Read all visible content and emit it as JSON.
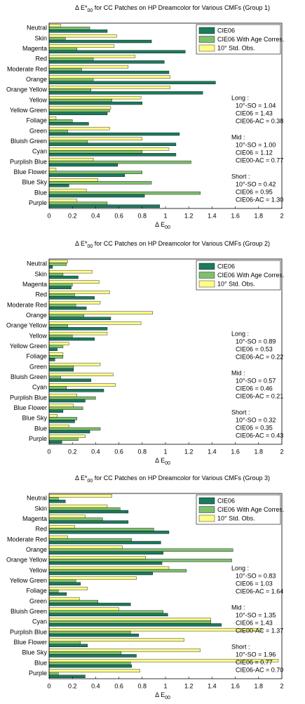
{
  "chart_data": [
    {
      "type": "barh",
      "title": "Δ E*",
      "title_sub": "00",
      "title_rest": " for CC Patches on HP Dreamcolor for Various CMFs (Group 1)",
      "xlabel": "Δ E",
      "xlabel_sub": "00",
      "categories": [
        "Neutral",
        "Skin",
        "Magenta",
        "Red",
        "Moderate Red",
        "Orange",
        "Orange Yellow",
        "Yellow",
        "Yellow Green",
        "Foliage",
        "Green",
        "Bluish Green",
        "Cyan",
        "Purplish Blue",
        "Blue Flower",
        "Blue Sky",
        "Blue",
        "Purple"
      ],
      "series": [
        {
          "name": "CIE06",
          "color": "#1b7a5f",
          "values": [
            0.5,
            0.88,
            1.17,
            0.99,
            1.03,
            1.43,
            1.32,
            0.8,
            0.5,
            0.34,
            1.12,
            1.09,
            1.09,
            0.59,
            0.65,
            0.17,
            0.82,
            0.95
          ]
        },
        {
          "name": "CIE06 With Age Corres.",
          "color": "#7fbf6e",
          "values": [
            0.35,
            0.14,
            0.24,
            0.38,
            0.28,
            0.38,
            0.36,
            0.54,
            0.52,
            0.2,
            0.16,
            0.33,
            0.8,
            1.22,
            0.8,
            0.88,
            1.3,
            0.5
          ]
        },
        {
          "name": "10° Std. Obs.",
          "color": "#ffff88",
          "values": [
            0.1,
            0.58,
            0.56,
            0.74,
            0.68,
            1.04,
            1.04,
            0.79,
            0.53,
            0.06,
            0.52,
            0.8,
            1.03,
            0.38,
            0.06,
            0.42,
            0.32,
            0.24
          ]
        }
      ],
      "xlim": [
        0,
        2
      ],
      "xticks": [
        0,
        0.2,
        0.4,
        0.6,
        0.8,
        1,
        1.2,
        1.4,
        1.6,
        1.8,
        2
      ],
      "legend": "upper right",
      "annotations": [
        [
          "Long :",
          "10°-SO = 1.04",
          "CIE06 = 1.43",
          "CIE06-AC = 0.38"
        ],
        [
          "Mid :",
          "10°-SO = 1.00",
          "CIE06 = 1.12",
          "CIE00-AC = 0.77"
        ],
        [
          "Short :",
          "10°-SO = 0.42",
          "CIE06 = 0.95",
          "CIE06-AC = 1.30"
        ]
      ]
    },
    {
      "type": "barh",
      "title": "Δ E*",
      "title_sub": "00",
      "title_rest": " for CC Patches on HP Dreamcolor for Various CMFs (Group 2)",
      "xlabel": "Δ E",
      "xlabel_sub": "00",
      "categories": [
        "Neutral",
        "Skin",
        "Magenta",
        "Red",
        "Moderate Red",
        "Orange",
        "Orange Yellow",
        "Yellow",
        "Yellow Green",
        "Foliage",
        "Green",
        "Bluish Green",
        "Cyan",
        "Purplish Blue",
        "Blue Flower",
        "Blue Sky",
        "Blue",
        "Purple"
      ],
      "series": [
        {
          "name": "CIE06",
          "color": "#1b7a5f",
          "values": [
            0.03,
            0.25,
            0.19,
            0.39,
            0.32,
            0.53,
            0.5,
            0.39,
            0.07,
            0.05,
            0.21,
            0.36,
            0.47,
            0.31,
            0.12,
            0.22,
            0.35,
            0.11
          ]
        },
        {
          "name": "CIE06 With Age Corres.",
          "color": "#7fbf6e",
          "values": [
            0.15,
            0.12,
            0.2,
            0.22,
            0.23,
            0.3,
            0.16,
            0.2,
            0.12,
            0.12,
            0.21,
            0.1,
            0.15,
            0.4,
            0.29,
            0.24,
            0.44,
            0.25
          ]
        },
        {
          "name": "10° Std. Obs.",
          "color": "#ffff88",
          "values": [
            0.16,
            0.37,
            0.43,
            0.52,
            0.44,
            0.89,
            0.79,
            0.5,
            0.17,
            0.12,
            0.44,
            0.55,
            0.57,
            0.24,
            0.21,
            0.07,
            0.17,
            0.31
          ]
        }
      ],
      "xlim": [
        0,
        2
      ],
      "xticks": [
        0,
        0.2,
        0.4,
        0.6,
        0.8,
        1,
        1.2,
        1.4,
        1.6,
        1.8,
        2
      ],
      "legend": "upper right",
      "annotations": [
        [
          "Long :",
          "10°-SO = 0.89",
          "CIE06 = 0.53",
          "CIE06-AC = 0.22"
        ],
        [
          "Mid :",
          "10°-SO = 0.57",
          "CIE06 = 0.46",
          "CIE06-AC = 0.21"
        ],
        [
          "Short :",
          "10°-SO = 0.32",
          "CIE06 = 0.35",
          "CIE06-AC = 0.43"
        ]
      ]
    },
    {
      "type": "barh",
      "title": "Δ E*",
      "title_sub": "00",
      "title_rest": " for CC Patches on HP Dreamcolor for Various CMFs (Group 3)",
      "xlabel": "Δ E",
      "xlabel_sub": "00",
      "categories": [
        "Neutral",
        "Skin",
        "Magenta",
        "Red",
        "Moderate Red",
        "Orange",
        "Orange Yellow",
        "Yellow",
        "Yellow Green",
        "Foliage",
        "Green",
        "Bluish Green",
        "Cyan",
        "Purplish Blue",
        "Blue Flower",
        "Blue Sky",
        "Blue",
        "Purple"
      ],
      "series": [
        {
          "name": "CIE06",
          "color": "#1b7a5f",
          "values": [
            0.14,
            0.68,
            0.68,
            1.03,
            0.96,
            0.98,
            0.97,
            0.89,
            0.27,
            0.15,
            0.7,
            1.02,
            1.48,
            0.77,
            0.33,
            0.75,
            0.71,
            0.31
          ]
        },
        {
          "name": "CIE06 With Age Corres.",
          "color": "#7fbf6e",
          "values": [
            0.08,
            0.61,
            0.46,
            0.9,
            0.71,
            1.58,
            1.57,
            1.18,
            0.23,
            0.08,
            0.42,
            0.98,
            1.39,
            0.7,
            0.27,
            0.62,
            0.7,
            0.08
          ]
        },
        {
          "name": "10° Std. Obs.",
          "color": "#ffff88",
          "values": [
            0.54,
            0.5,
            0.31,
            0.22,
            0.16,
            0.63,
            0.83,
            1.03,
            0.75,
            0.33,
            0.26,
            0.6,
            1.39,
            1.83,
            1.16,
            1.3,
            1.97,
            0.78
          ]
        }
      ],
      "xlim": [
        0,
        2
      ],
      "xticks": [
        0,
        0.2,
        0.4,
        0.6,
        0.8,
        1,
        1.2,
        1.4,
        1.6,
        1.8,
        2
      ],
      "legend": "upper right",
      "annotations": [
        [
          "Long :",
          "10°-SO = 0.83",
          "CIE06 = 1.03",
          "CIE06-AC = 1.64"
        ],
        [
          "Mid :",
          "10°-SO = 1.35",
          "CIE06 = 1.43",
          "CIE00-AC = 1.37"
        ],
        [
          "Short :",
          "10°-SO = 1.96",
          "CIE06 = 0.77",
          "CIE06-AC = 0.70"
        ]
      ]
    }
  ]
}
